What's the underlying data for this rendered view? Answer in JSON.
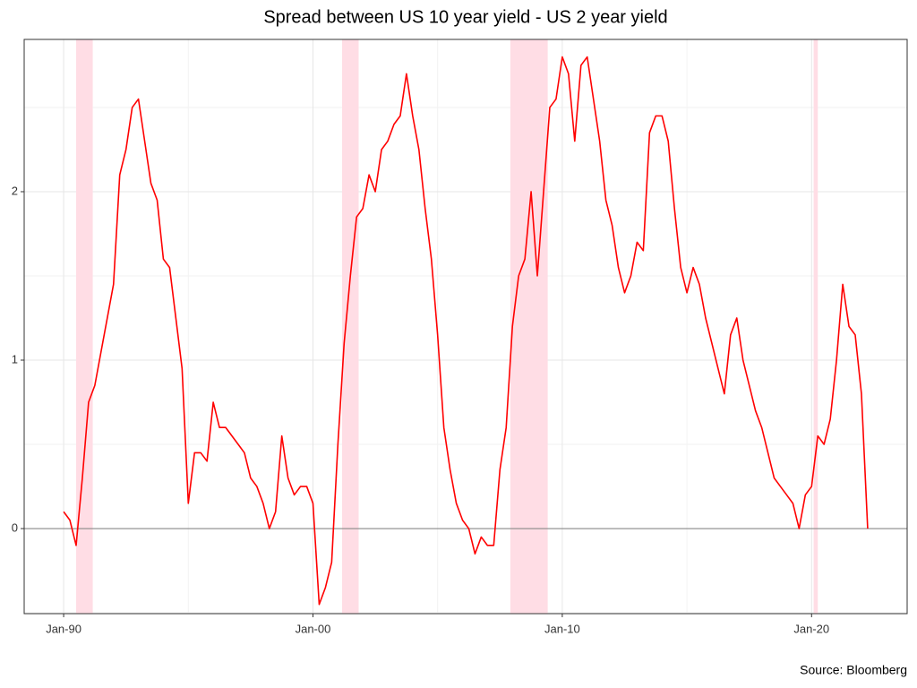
{
  "chart_data": {
    "type": "line",
    "title": "Spread between US 10 year yield - US 2 year yield",
    "source": "Source: Bloomberg",
    "x": [
      "1990-01",
      "1990-04",
      "1990-07",
      "1990-10",
      "1991-01",
      "1991-04",
      "1991-07",
      "1991-10",
      "1992-01",
      "1992-04",
      "1992-07",
      "1992-10",
      "1993-01",
      "1993-04",
      "1993-07",
      "1993-10",
      "1994-01",
      "1994-04",
      "1994-07",
      "1994-10",
      "1995-01",
      "1995-04",
      "1995-07",
      "1995-10",
      "1996-01",
      "1996-04",
      "1996-07",
      "1996-10",
      "1997-01",
      "1997-04",
      "1997-07",
      "1997-10",
      "1998-01",
      "1998-04",
      "1998-07",
      "1998-10",
      "1999-01",
      "1999-04",
      "1999-07",
      "1999-10",
      "2000-01",
      "2000-04",
      "2000-07",
      "2000-10",
      "2001-01",
      "2001-04",
      "2001-07",
      "2001-10",
      "2002-01",
      "2002-04",
      "2002-07",
      "2002-10",
      "2003-01",
      "2003-04",
      "2003-07",
      "2003-10",
      "2004-01",
      "2004-04",
      "2004-07",
      "2004-10",
      "2005-01",
      "2005-04",
      "2005-07",
      "2005-10",
      "2006-01",
      "2006-04",
      "2006-07",
      "2006-10",
      "2007-01",
      "2007-04",
      "2007-07",
      "2007-10",
      "2008-01",
      "2008-04",
      "2008-07",
      "2008-10",
      "2009-01",
      "2009-04",
      "2009-07",
      "2009-10",
      "2010-01",
      "2010-04",
      "2010-07",
      "2010-10",
      "2011-01",
      "2011-04",
      "2011-07",
      "2011-10",
      "2012-01",
      "2012-04",
      "2012-07",
      "2012-10",
      "2013-01",
      "2013-04",
      "2013-07",
      "2013-10",
      "2014-01",
      "2014-04",
      "2014-07",
      "2014-10",
      "2015-01",
      "2015-04",
      "2015-07",
      "2015-10",
      "2016-01",
      "2016-04",
      "2016-07",
      "2016-10",
      "2017-01",
      "2017-04",
      "2017-07",
      "2017-10",
      "2018-01",
      "2018-04",
      "2018-07",
      "2018-10",
      "2019-01",
      "2019-04",
      "2019-07",
      "2019-10",
      "2020-01",
      "2020-04",
      "2020-07",
      "2020-10",
      "2021-01",
      "2021-04",
      "2021-07",
      "2021-10",
      "2022-01",
      "2022-04"
    ],
    "series": [
      {
        "color": "#ff0000",
        "values": [
          0.1,
          0.05,
          -0.1,
          0.3,
          0.75,
          0.85,
          1.05,
          1.25,
          1.45,
          2.1,
          2.25,
          2.5,
          2.55,
          2.3,
          2.05,
          1.95,
          1.6,
          1.55,
          1.25,
          0.95,
          0.15,
          0.45,
          0.45,
          0.4,
          0.75,
          0.6,
          0.6,
          0.55,
          0.5,
          0.45,
          0.3,
          0.25,
          0.15,
          0.0,
          0.1,
          0.55,
          0.3,
          0.2,
          0.25,
          0.25,
          0.15,
          -0.45,
          -0.35,
          -0.2,
          0.5,
          1.1,
          1.5,
          1.85,
          1.9,
          2.1,
          2.0,
          2.25,
          2.3,
          2.4,
          2.45,
          2.7,
          2.45,
          2.25,
          1.9,
          1.6,
          1.15,
          0.6,
          0.35,
          0.15,
          0.05,
          0.0,
          -0.15,
          -0.05,
          -0.1,
          -0.1,
          0.35,
          0.6,
          1.2,
          1.5,
          1.6,
          2.0,
          1.5,
          2.0,
          2.5,
          2.55,
          2.8,
          2.7,
          2.3,
          2.75,
          2.8,
          2.55,
          2.3,
          1.95,
          1.8,
          1.55,
          1.4,
          1.5,
          1.7,
          1.65,
          2.35,
          2.45,
          2.45,
          2.3,
          1.9,
          1.55,
          1.4,
          1.55,
          1.45,
          1.25,
          1.1,
          0.95,
          0.8,
          1.15,
          1.25,
          1.0,
          0.85,
          0.7,
          0.6,
          0.45,
          0.3,
          0.25,
          0.2,
          0.15,
          0.0,
          0.2,
          0.25,
          0.55,
          0.5,
          0.65,
          1.0,
          1.45,
          1.2,
          1.15,
          0.8,
          0.0
        ]
      }
    ],
    "recessions": [
      [
        "1990-07",
        "1991-03"
      ],
      [
        "2001-03",
        "2001-11"
      ],
      [
        "2007-12",
        "2009-06"
      ],
      [
        "2020-02",
        "2020-04"
      ]
    ],
    "recession_color": "#ffdde5",
    "hline": 0,
    "xlim": [
      "1988-06",
      "2023-11"
    ],
    "xticks": [
      {
        "value": "1990-01",
        "label": "Jan-90"
      },
      {
        "value": "2000-01",
        "label": "Jan-00"
      },
      {
        "value": "2010-01",
        "label": "Jan-10"
      },
      {
        "value": "2020-01",
        "label": "Jan-20"
      }
    ],
    "minor_xticks": [
      "1995-01",
      "2005-01",
      "2015-01"
    ],
    "ylim": [
      -0.505,
      2.904
    ],
    "yticks": [
      0,
      1,
      2
    ],
    "minor_yticks": [
      -0.5,
      0.5,
      1.5,
      2.5
    ],
    "grid": true
  }
}
